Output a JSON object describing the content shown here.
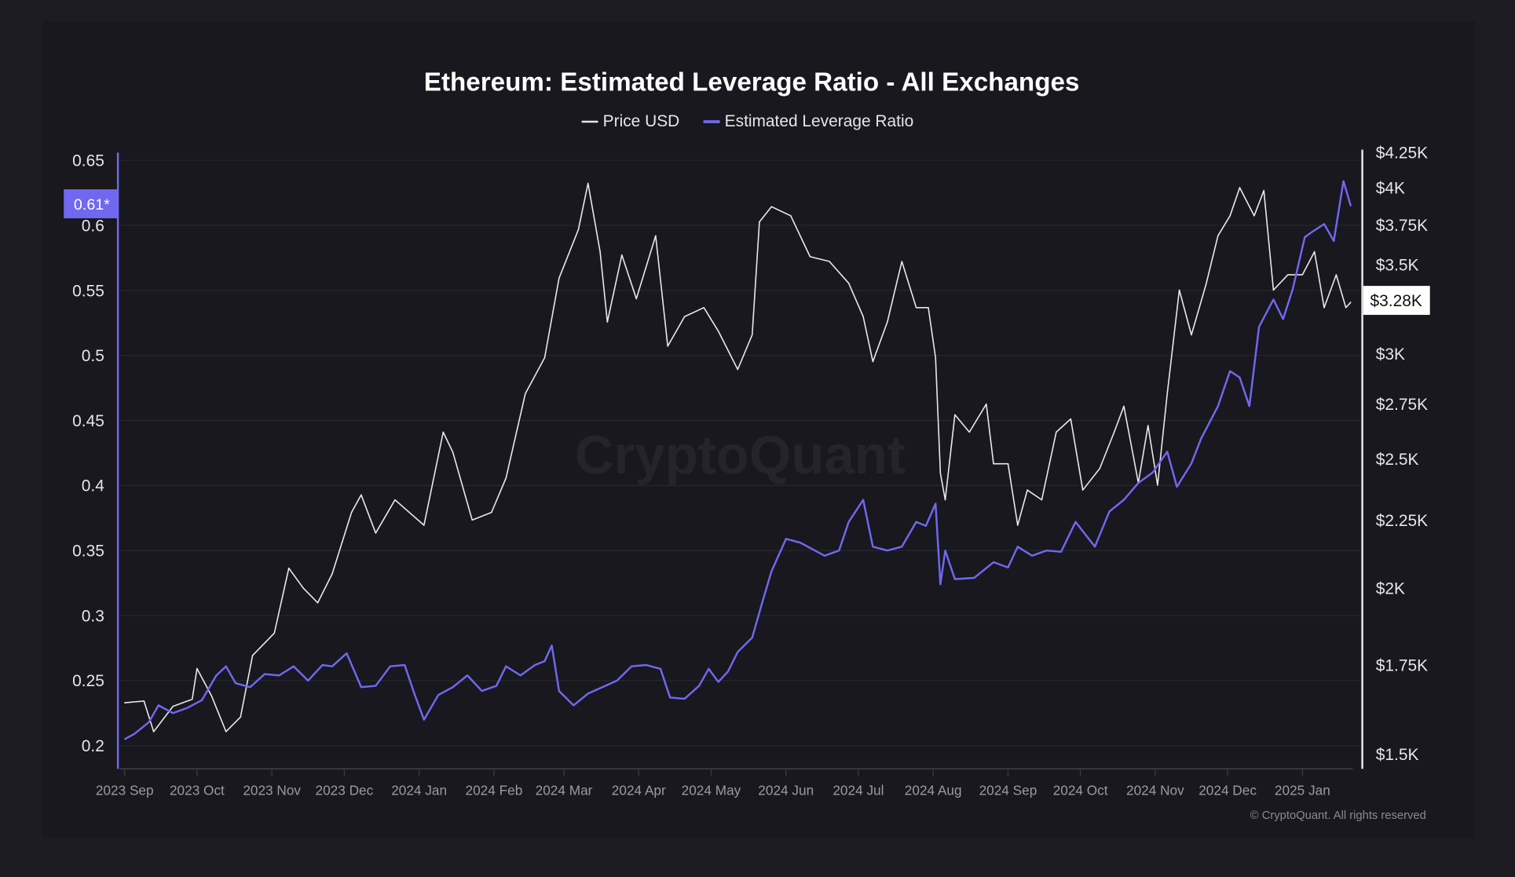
{
  "chart_data": {
    "type": "line",
    "title": "Ethereum: Estimated Leverage Ratio - All Exchanges",
    "legend": {
      "placement": "top-center",
      "items": [
        "Price USD",
        "Estimated Leverage Ratio"
      ]
    },
    "watermark": "CryptoQuant",
    "copyright": "© CryptoQuant. All rights reserved",
    "colors": {
      "background": "#1a1a20",
      "price": "#e8e8ec",
      "leverage": "#7068f0",
      "grid": "#26262e"
    },
    "grid": true,
    "x_axis": {
      "type": "date",
      "range": [
        "2023-09-01",
        "2025-01-21"
      ],
      "tick_labels": [
        "2023 Sep",
        "2023 Oct",
        "2023 Nov",
        "2023 Dec",
        "2024 Jan",
        "2024 Feb",
        "2024 Mar",
        "2024 Apr",
        "2024 May",
        "2024 Jun",
        "2024 Jul",
        "2024 Aug",
        "2024 Sep",
        "2024 Oct",
        "2024 Nov",
        "2024 Dec",
        "2025 Jan"
      ],
      "tick_dates": [
        "2023-09-01",
        "2023-10-01",
        "2023-11-01",
        "2023-12-01",
        "2024-01-01",
        "2024-02-01",
        "2024-03-01",
        "2024-04-01",
        "2024-05-01",
        "2024-06-01",
        "2024-07-01",
        "2024-08-01",
        "2024-09-01",
        "2024-10-01",
        "2024-11-01",
        "2024-12-01",
        "2025-01-01"
      ]
    },
    "y_left": {
      "series": "Estimated Leverage Ratio",
      "range": [
        0.2,
        0.65
      ],
      "tick_values": [
        0.2,
        0.25,
        0.3,
        0.35,
        0.4,
        0.45,
        0.5,
        0.55,
        0.6,
        0.65
      ],
      "tick_labels": [
        "0.2",
        "0.25",
        "0.3",
        "0.35",
        "0.4",
        "0.45",
        "0.5",
        "0.55",
        "0.6",
        "0.65"
      ],
      "current_label": "0.61*",
      "current_value": 0.61
    },
    "y_right": {
      "series": "Price USD",
      "scale": "log",
      "range": [
        1500,
        4250
      ],
      "tick_values": [
        1500,
        1750,
        2000,
        2250,
        2500,
        2750,
        3000,
        3500,
        3750,
        4000,
        4250
      ],
      "tick_labels": [
        "$1.5K",
        "$1.75K",
        "$2K",
        "$2.25K",
        "$2.5K",
        "$2.75K",
        "$3K",
        "$3.5K",
        "$3.75K",
        "$4K",
        "$4.25K"
      ],
      "current_label": "$3.28K",
      "current_value": 3280
    },
    "series": [
      {
        "name": "Price USD",
        "axis": "right",
        "points": [
          [
            "2023-09-01",
            1640
          ],
          [
            "2023-09-09",
            1645
          ],
          [
            "2023-09-13",
            1560
          ],
          [
            "2023-09-21",
            1630
          ],
          [
            "2023-09-29",
            1650
          ],
          [
            "2023-10-01",
            1740
          ],
          [
            "2023-10-07",
            1660
          ],
          [
            "2023-10-13",
            1560
          ],
          [
            "2023-10-19",
            1600
          ],
          [
            "2023-10-24",
            1780
          ],
          [
            "2023-11-02",
            1850
          ],
          [
            "2023-11-08",
            2070
          ],
          [
            "2023-11-14",
            2000
          ],
          [
            "2023-11-20",
            1950
          ],
          [
            "2023-11-26",
            2050
          ],
          [
            "2023-12-04",
            2280
          ],
          [
            "2023-12-08",
            2350
          ],
          [
            "2023-12-14",
            2200
          ],
          [
            "2023-12-22",
            2330
          ],
          [
            "2024-01-03",
            2230
          ],
          [
            "2024-01-11",
            2620
          ],
          [
            "2024-01-15",
            2530
          ],
          [
            "2024-01-23",
            2250
          ],
          [
            "2024-01-31",
            2280
          ],
          [
            "2024-02-06",
            2420
          ],
          [
            "2024-02-14",
            2800
          ],
          [
            "2024-02-22",
            2980
          ],
          [
            "2024-02-28",
            3420
          ],
          [
            "2024-03-07",
            3720
          ],
          [
            "2024-03-11",
            4030
          ],
          [
            "2024-03-16",
            3580
          ],
          [
            "2024-03-19",
            3170
          ],
          [
            "2024-03-25",
            3560
          ],
          [
            "2024-03-31",
            3300
          ],
          [
            "2024-04-08",
            3680
          ],
          [
            "2024-04-13",
            3040
          ],
          [
            "2024-04-20",
            3200
          ],
          [
            "2024-04-28",
            3250
          ],
          [
            "2024-05-04",
            3120
          ],
          [
            "2024-05-12",
            2920
          ],
          [
            "2024-05-18",
            3100
          ],
          [
            "2024-05-21",
            3770
          ],
          [
            "2024-05-26",
            3870
          ],
          [
            "2024-06-03",
            3810
          ],
          [
            "2024-06-11",
            3550
          ],
          [
            "2024-06-19",
            3520
          ],
          [
            "2024-06-27",
            3390
          ],
          [
            "2024-07-03",
            3200
          ],
          [
            "2024-07-07",
            2960
          ],
          [
            "2024-07-13",
            3170
          ],
          [
            "2024-07-19",
            3520
          ],
          [
            "2024-07-25",
            3250
          ],
          [
            "2024-07-30",
            3250
          ],
          [
            "2024-08-02",
            2980
          ],
          [
            "2024-08-04",
            2440
          ],
          [
            "2024-08-06",
            2330
          ],
          [
            "2024-08-10",
            2700
          ],
          [
            "2024-08-16",
            2620
          ],
          [
            "2024-08-23",
            2750
          ],
          [
            "2024-08-26",
            2480
          ],
          [
            "2024-09-01",
            2480
          ],
          [
            "2024-09-05",
            2230
          ],
          [
            "2024-09-09",
            2370
          ],
          [
            "2024-09-15",
            2330
          ],
          [
            "2024-09-21",
            2620
          ],
          [
            "2024-09-27",
            2680
          ],
          [
            "2024-10-02",
            2370
          ],
          [
            "2024-10-09",
            2460
          ],
          [
            "2024-10-15",
            2620
          ],
          [
            "2024-10-19",
            2740
          ],
          [
            "2024-10-25",
            2400
          ],
          [
            "2024-10-29",
            2650
          ],
          [
            "2024-11-02",
            2390
          ],
          [
            "2024-11-06",
            2800
          ],
          [
            "2024-11-11",
            3350
          ],
          [
            "2024-11-16",
            3100
          ],
          [
            "2024-11-22",
            3380
          ],
          [
            "2024-11-27",
            3680
          ],
          [
            "2024-12-02",
            3810
          ],
          [
            "2024-12-06",
            4000
          ],
          [
            "2024-12-12",
            3810
          ],
          [
            "2024-12-16",
            3980
          ],
          [
            "2024-12-20",
            3350
          ],
          [
            "2024-12-26",
            3440
          ],
          [
            "2025-01-01",
            3440
          ],
          [
            "2025-01-06",
            3580
          ],
          [
            "2025-01-10",
            3250
          ],
          [
            "2025-01-15",
            3440
          ],
          [
            "2025-01-19",
            3250
          ],
          [
            "2025-01-21",
            3280
          ]
        ]
      },
      {
        "name": "Estimated Leverage Ratio",
        "axis": "left",
        "points": [
          [
            "2023-09-01",
            0.205
          ],
          [
            "2023-09-05",
            0.209
          ],
          [
            "2023-09-11",
            0.218
          ],
          [
            "2023-09-15",
            0.231
          ],
          [
            "2023-09-21",
            0.225
          ],
          [
            "2023-09-27",
            0.229
          ],
          [
            "2023-10-03",
            0.235
          ],
          [
            "2023-10-09",
            0.254
          ],
          [
            "2023-10-13",
            0.261
          ],
          [
            "2023-10-17",
            0.248
          ],
          [
            "2023-10-23",
            0.245
          ],
          [
            "2023-10-29",
            0.255
          ],
          [
            "2023-11-04",
            0.254
          ],
          [
            "2023-11-10",
            0.261
          ],
          [
            "2023-11-16",
            0.25
          ],
          [
            "2023-11-22",
            0.262
          ],
          [
            "2023-11-26",
            0.261
          ],
          [
            "2023-12-02",
            0.271
          ],
          [
            "2023-12-08",
            0.245
          ],
          [
            "2023-12-14",
            0.246
          ],
          [
            "2023-12-20",
            0.261
          ],
          [
            "2023-12-26",
            0.262
          ],
          [
            "2023-12-30",
            0.24
          ],
          [
            "2024-01-03",
            0.22
          ],
          [
            "2024-01-09",
            0.239
          ],
          [
            "2024-01-15",
            0.245
          ],
          [
            "2024-01-21",
            0.254
          ],
          [
            "2024-01-27",
            0.242
          ],
          [
            "2024-02-02",
            0.246
          ],
          [
            "2024-02-06",
            0.261
          ],
          [
            "2024-02-12",
            0.254
          ],
          [
            "2024-02-18",
            0.262
          ],
          [
            "2024-02-22",
            0.265
          ],
          [
            "2024-02-25",
            0.277
          ],
          [
            "2024-02-28",
            0.242
          ],
          [
            "2024-03-05",
            0.231
          ],
          [
            "2024-03-11",
            0.24
          ],
          [
            "2024-03-17",
            0.245
          ],
          [
            "2024-03-23",
            0.25
          ],
          [
            "2024-03-29",
            0.261
          ],
          [
            "2024-04-04",
            0.262
          ],
          [
            "2024-04-10",
            0.259
          ],
          [
            "2024-04-14",
            0.237
          ],
          [
            "2024-04-20",
            0.236
          ],
          [
            "2024-04-26",
            0.246
          ],
          [
            "2024-04-30",
            0.259
          ],
          [
            "2024-05-04",
            0.249
          ],
          [
            "2024-05-08",
            0.257
          ],
          [
            "2024-05-12",
            0.272
          ],
          [
            "2024-05-18",
            0.283
          ],
          [
            "2024-05-22",
            0.309
          ],
          [
            "2024-05-26",
            0.334
          ],
          [
            "2024-06-01",
            0.359
          ],
          [
            "2024-06-07",
            0.356
          ],
          [
            "2024-06-13",
            0.35
          ],
          [
            "2024-06-17",
            0.346
          ],
          [
            "2024-06-23",
            0.35
          ],
          [
            "2024-06-27",
            0.372
          ],
          [
            "2024-07-03",
            0.389
          ],
          [
            "2024-07-07",
            0.353
          ],
          [
            "2024-07-13",
            0.35
          ],
          [
            "2024-07-19",
            0.353
          ],
          [
            "2024-07-25",
            0.372
          ],
          [
            "2024-07-29",
            0.369
          ],
          [
            "2024-08-02",
            0.386
          ],
          [
            "2024-08-04",
            0.324
          ],
          [
            "2024-08-06",
            0.35
          ],
          [
            "2024-08-10",
            0.328
          ],
          [
            "2024-08-18",
            0.329
          ],
          [
            "2024-08-26",
            0.341
          ],
          [
            "2024-09-01",
            0.337
          ],
          [
            "2024-09-05",
            0.353
          ],
          [
            "2024-09-11",
            0.346
          ],
          [
            "2024-09-17",
            0.35
          ],
          [
            "2024-09-23",
            0.349
          ],
          [
            "2024-09-29",
            0.372
          ],
          [
            "2024-10-07",
            0.353
          ],
          [
            "2024-10-13",
            0.38
          ],
          [
            "2024-10-19",
            0.389
          ],
          [
            "2024-10-25",
            0.402
          ],
          [
            "2024-10-31",
            0.41
          ],
          [
            "2024-11-06",
            0.426
          ],
          [
            "2024-11-10",
            0.399
          ],
          [
            "2024-11-16",
            0.417
          ],
          [
            "2024-11-20",
            0.436
          ],
          [
            "2024-11-27",
            0.461
          ],
          [
            "2024-12-02",
            0.488
          ],
          [
            "2024-12-06",
            0.483
          ],
          [
            "2024-12-10",
            0.461
          ],
          [
            "2024-12-14",
            0.522
          ],
          [
            "2024-12-20",
            0.543
          ],
          [
            "2024-12-24",
            0.528
          ],
          [
            "2024-12-28",
            0.551
          ],
          [
            "2025-01-02",
            0.591
          ],
          [
            "2025-01-05",
            0.595
          ],
          [
            "2025-01-10",
            0.601
          ],
          [
            "2025-01-14",
            0.588
          ],
          [
            "2025-01-18",
            0.634
          ],
          [
            "2025-01-21",
            0.615
          ]
        ]
      }
    ]
  }
}
